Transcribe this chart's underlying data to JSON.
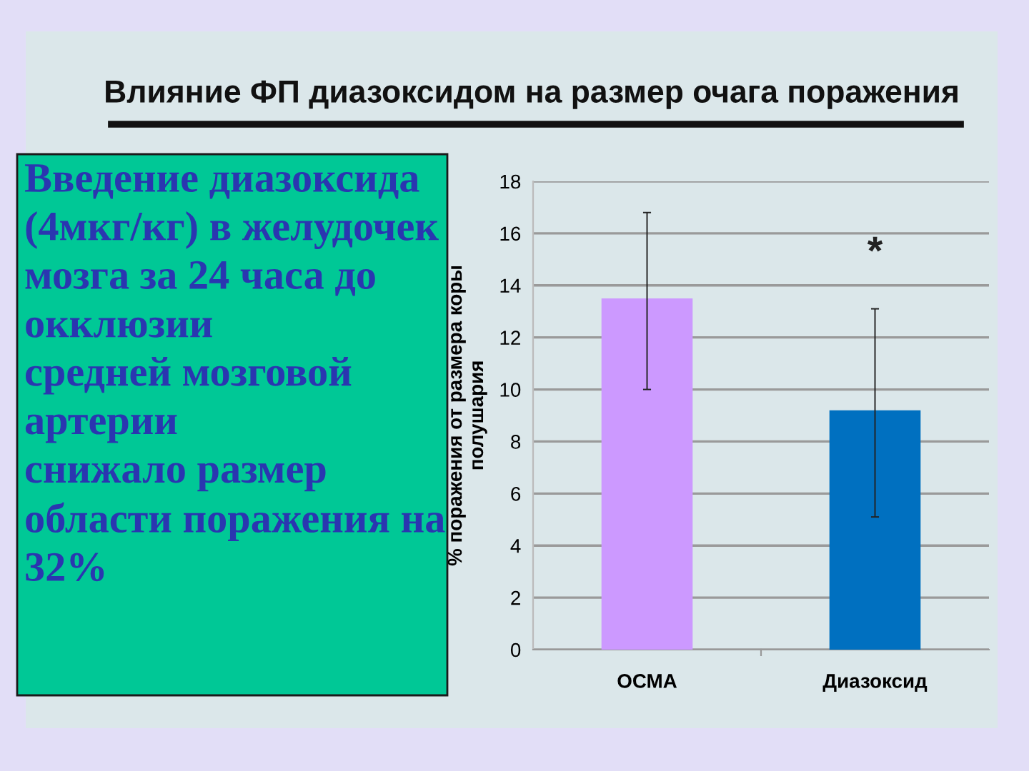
{
  "chart_data": {
    "type": "bar",
    "title": "Влияние ФП диазоксидом на размер очага поражения",
    "ylabel": "% поражения от размера коры\nполушария",
    "categories": [
      "ОСМА",
      "Диазоксид"
    ],
    "values": [
      13.5,
      9.2
    ],
    "colors": [
      "#cc99ff",
      "#0070c0"
    ],
    "errors": [
      [
        10.0,
        16.8
      ],
      [
        5.1,
        13.1
      ]
    ],
    "ylim": [
      0,
      18
    ],
    "yticks": [
      0,
      2,
      4,
      6,
      8,
      10,
      12,
      14,
      16,
      18
    ],
    "grid": "y",
    "legend": false,
    "annotations": [
      "Введение диазоксида\n(4мкг/кг) в желудочек\nмозга за 24 часа до\nокклюзии\nсредней мозговой\nартерии\nснижало размер\nобласти поражения на\n32%",
      "*"
    ]
  }
}
